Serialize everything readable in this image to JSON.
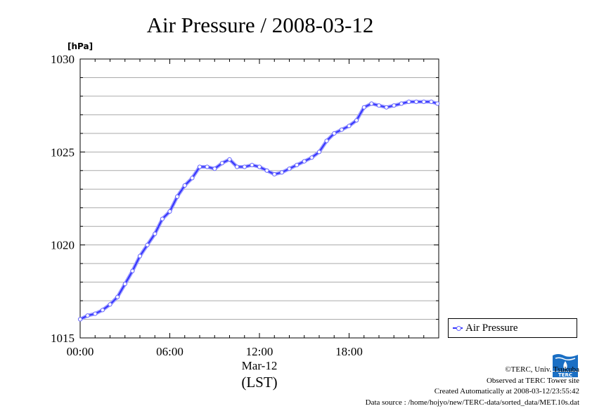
{
  "chart_data": {
    "type": "line",
    "title": "Air Pressure / 2008-03-12",
    "ylabel": "[hPa]",
    "xlabel": "(LST)",
    "x_date_label": "Mar-12",
    "ylim": [
      1015,
      1030
    ],
    "yticks": [
      "1015",
      "1020",
      "1025",
      "1030"
    ],
    "xticks": [
      "00:00",
      "06:00",
      "12:00",
      "18:00"
    ],
    "xlim": [
      "00:00",
      "24:00"
    ],
    "grid": true,
    "legend": "right",
    "series": [
      {
        "name": "Air Pressure",
        "color": "#3333ff",
        "x": [
          "00:00",
          "00:30",
          "01:00",
          "01:30",
          "02:00",
          "02:30",
          "03:00",
          "03:30",
          "04:00",
          "04:30",
          "05:00",
          "05:30",
          "06:00",
          "06:30",
          "07:00",
          "07:30",
          "08:00",
          "08:30",
          "09:00",
          "09:30",
          "10:00",
          "10:30",
          "11:00",
          "11:30",
          "12:00",
          "12:30",
          "13:00",
          "13:30",
          "14:00",
          "14:30",
          "15:00",
          "15:30",
          "16:00",
          "16:30",
          "17:00",
          "17:30",
          "18:00",
          "18:30",
          "19:00",
          "19:30",
          "20:00",
          "20:30",
          "21:00",
          "21:30",
          "22:00",
          "22:30",
          "23:00",
          "23:30",
          "23:55"
        ],
        "values": [
          1016.0,
          1016.2,
          1016.3,
          1016.5,
          1016.8,
          1017.2,
          1017.9,
          1018.6,
          1019.4,
          1020.0,
          1020.6,
          1021.4,
          1021.8,
          1022.6,
          1023.2,
          1023.6,
          1024.2,
          1024.2,
          1024.1,
          1024.4,
          1024.6,
          1024.2,
          1024.2,
          1024.3,
          1024.2,
          1024.0,
          1023.8,
          1023.9,
          1024.1,
          1024.3,
          1024.5,
          1024.7,
          1025.0,
          1025.6,
          1026.0,
          1026.2,
          1026.4,
          1026.7,
          1027.4,
          1027.6,
          1027.5,
          1027.4,
          1027.5,
          1027.6,
          1027.7,
          1027.7,
          1027.7,
          1027.7,
          1027.6
        ]
      }
    ]
  },
  "credits": {
    "copyright": "©TERC, Univ. Tsukuba",
    "observed": "Observed at TERC Tower site",
    "created": "Created Automatically at 2008-03-12/23:55:42",
    "source": "Data source : /home/hojyo/new/TERC-data/sorted_data/MET.10s.dat"
  },
  "logo": {
    "name": "terc-logo",
    "text": "TERC",
    "color": "#1a6fc4"
  }
}
